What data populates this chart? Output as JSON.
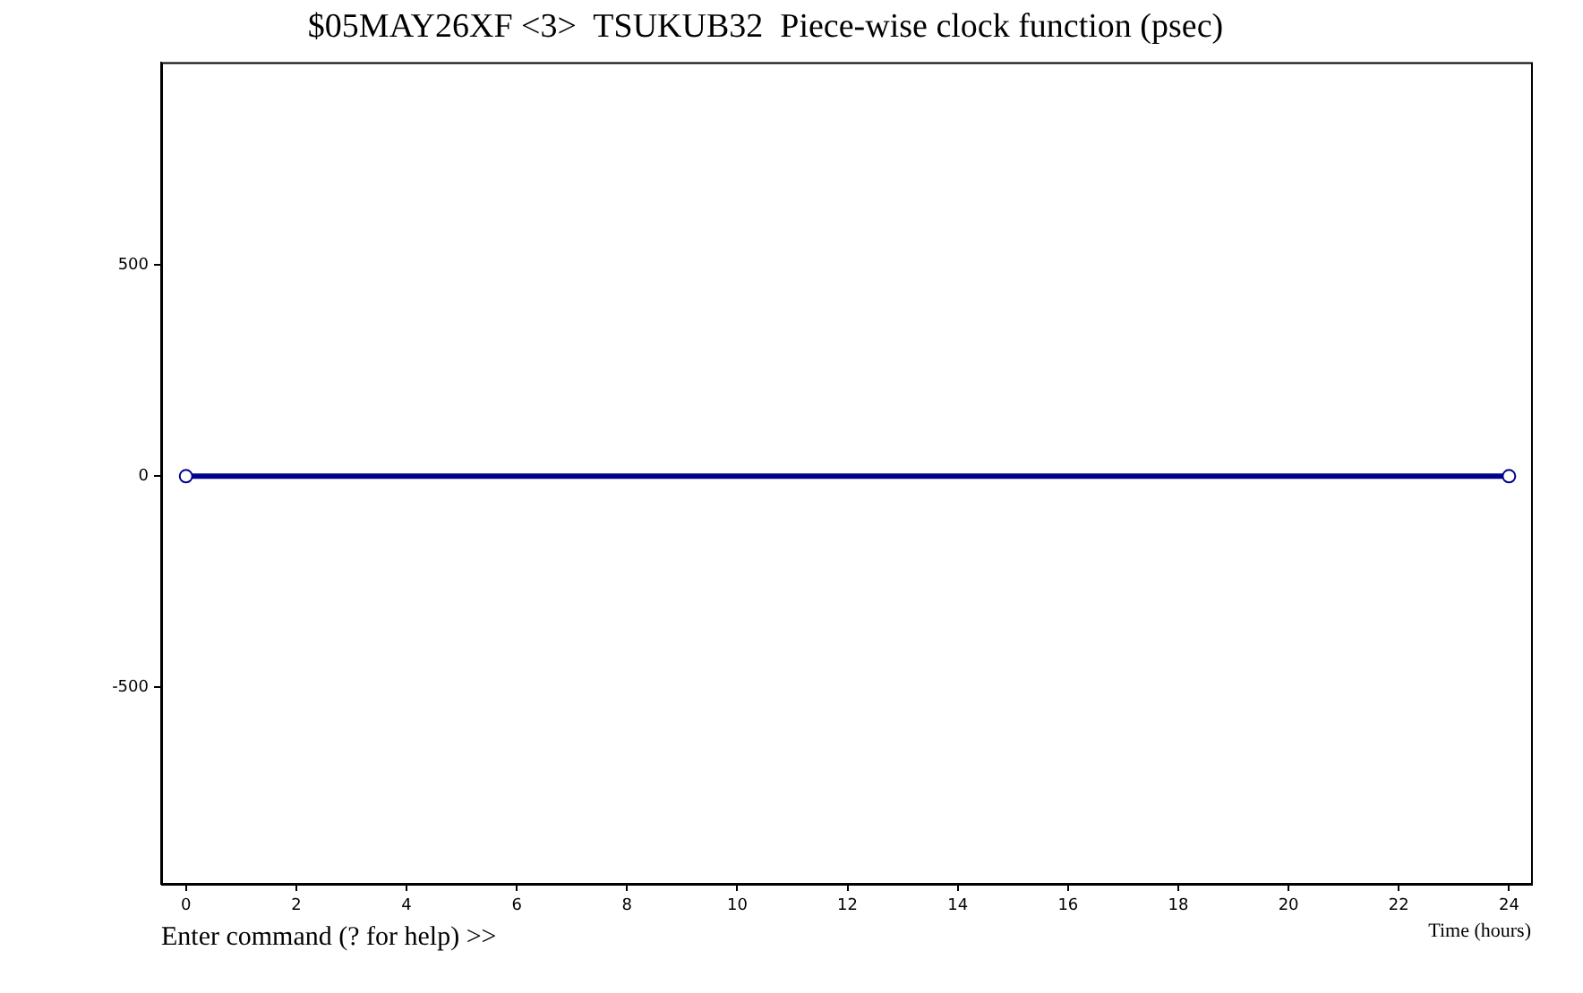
{
  "chart_data": {
    "type": "line",
    "title": "$05MAY26XF <3>  TSUKUB32  Piece-wise clock function (psec)",
    "xlabel": "Time (hours)",
    "annotations": [
      "Enter command (? for help) >>"
    ],
    "x": [
      0,
      24
    ],
    "series": [
      {
        "color": "#00008b",
        "values": [
          0,
          0
        ]
      }
    ],
    "xlim": [
      -0.45,
      24.4
    ],
    "xticks": [
      0,
      2,
      4,
      6,
      8,
      10,
      12,
      14,
      16,
      18,
      20,
      22,
      24
    ],
    "ylim": [
      -965,
      980
    ],
    "yticks": [
      -500,
      0,
      500
    ],
    "grid": false,
    "legend": false,
    "marker": "circle",
    "line_style": "solid"
  }
}
